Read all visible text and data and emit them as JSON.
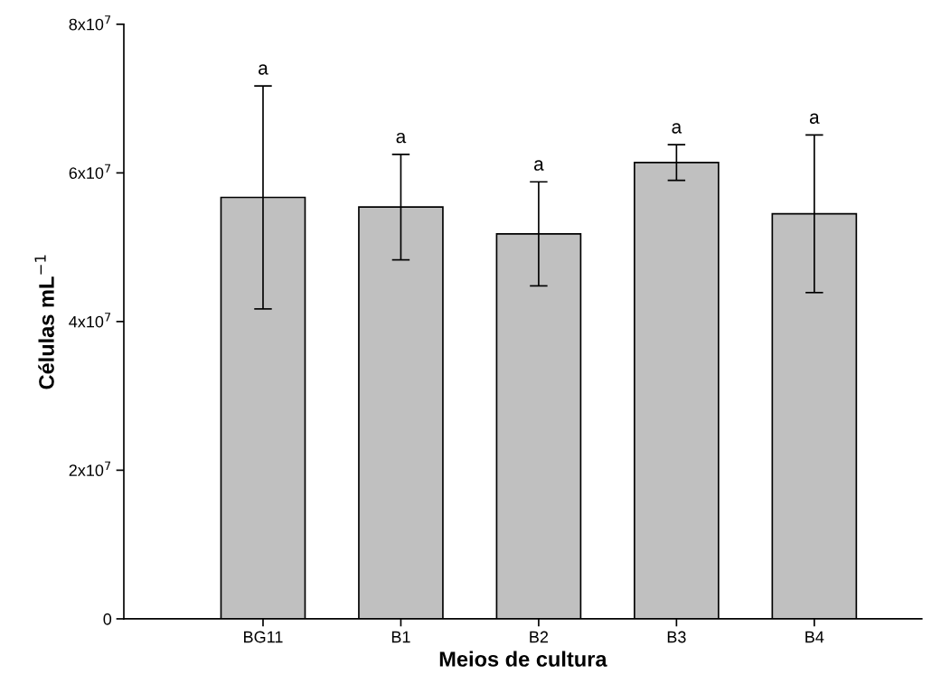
{
  "chart_data": {
    "type": "bar",
    "xlabel": "Meios de cultura",
    "ylabel": "Células mL$^{−1}$",
    "categories": [
      "BG11",
      "B1",
      "B2",
      "B3",
      "B4"
    ],
    "values": [
      56700000,
      55400000,
      51800000,
      61400000,
      54500000
    ],
    "errors": [
      15000000,
      7100000,
      7000000,
      2400000,
      10600000
    ],
    "color": "#c0c0c0",
    "ylim": [
      0,
      80000000
    ],
    "yticks": [
      {
        "value": 0,
        "label": "0"
      },
      {
        "value": 20000000,
        "label": "2x10$^{7}$"
      },
      {
        "value": 40000000,
        "label": "4x10$^{7}$"
      },
      {
        "value": 60000000,
        "label": "6x10$^{7}$"
      },
      {
        "value": 80000000,
        "label": "8x10$^{7}$"
      }
    ],
    "annotations": [
      {
        "text": "a",
        "x": "BG11",
        "y": 71700000
      },
      {
        "text": "a",
        "x": "B1",
        "y": 62500000
      },
      {
        "text": "a",
        "x": "B2",
        "y": 58800000
      },
      {
        "text": "a",
        "x": "B3",
        "y": 63800000
      },
      {
        "text": "a",
        "x": "B4",
        "y": 65100000
      }
    ],
    "grid": false,
    "legend": false
  }
}
